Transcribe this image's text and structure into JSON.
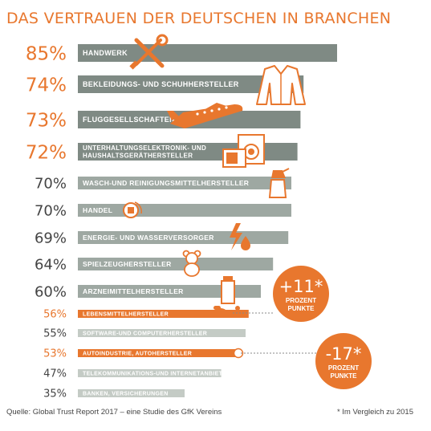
{
  "title": "DAS VERTRAUEN DER DEUTSCHEN IN BRANCHEN",
  "source": "Quelle: Global Trust Report 2017 – eine Studie des GfK Vereins",
  "footnote": "* Im Vergleich zu 2015",
  "colors": {
    "accent": "#e8772e",
    "bar_dark": "#7f8a84",
    "bar_mid": "#9ea8a2",
    "bar_light": "#c4cbc5",
    "text_dark": "#444444"
  },
  "badges": [
    {
      "value": "+11*",
      "line1": "PROZENT",
      "line2": "PUNKTE",
      "refers_to": "LEBENSMITTELHERSTELLER"
    },
    {
      "value": "-17*",
      "line1": "PROZENT",
      "line2": "PUNKTE",
      "refers_to": "AUTOINDUSTRIE, AUTOHERSTELLER"
    }
  ],
  "chart_data": {
    "type": "bar",
    "orientation": "horizontal",
    "title": "DAS VERTRAUEN DER DEUTSCHEN IN BRANCHEN",
    "xlim": [
      0,
      100
    ],
    "grid": false,
    "categories": [
      "HANDWERK",
      "BEKLEIDUNGS- UND SCHUHHERSTELLER",
      "FLUGGESELLSCHAFTEN",
      "UNTERHALTUNGSELEKTRONIK- UND HAUSHALTSGERÄTHERSTELLER",
      "WASCH-UND REINIGUNGSMITTELHERSTELLER",
      "HANDEL",
      "ENERGIE- UND WASSERVERSORGER",
      "SPIELZEUGHERSTELLER",
      "ARZNEIMITTELHERSTELLER",
      "LEBENSMITTELHERSTELLER",
      "SOFTWARE-UND COMPUTERHERSTELLER",
      "AUTOINDUSTRIE, AUTOHERSTELLER",
      "TELEKOMMUNIKATIONS-UND INTERNETANBIETER",
      "BANKEN, VERSICHERUNGEN"
    ],
    "labels": [
      "85%",
      "74%",
      "73%",
      "72%",
      "70%",
      "70%",
      "69%",
      "64%",
      "60%",
      "56%",
      "55%",
      "53%",
      "47%",
      "35%"
    ],
    "values": [
      85,
      74,
      73,
      72,
      70,
      70,
      69,
      64,
      60,
      56,
      55,
      53,
      47,
      35
    ],
    "highlighted": [
      "HANDWERK",
      "BEKLEIDUNGS- UND SCHUHHERSTELLER",
      "FLUGGESELLSCHAFTEN",
      "UNTERHALTUNGSELEKTRONIK- UND HAUSHALTSGERÄTHERSTELLER",
      "LEBENSMITTELHERSTELLER",
      "AUTOINDUSTRIE, AUTOHERSTELLER"
    ]
  }
}
